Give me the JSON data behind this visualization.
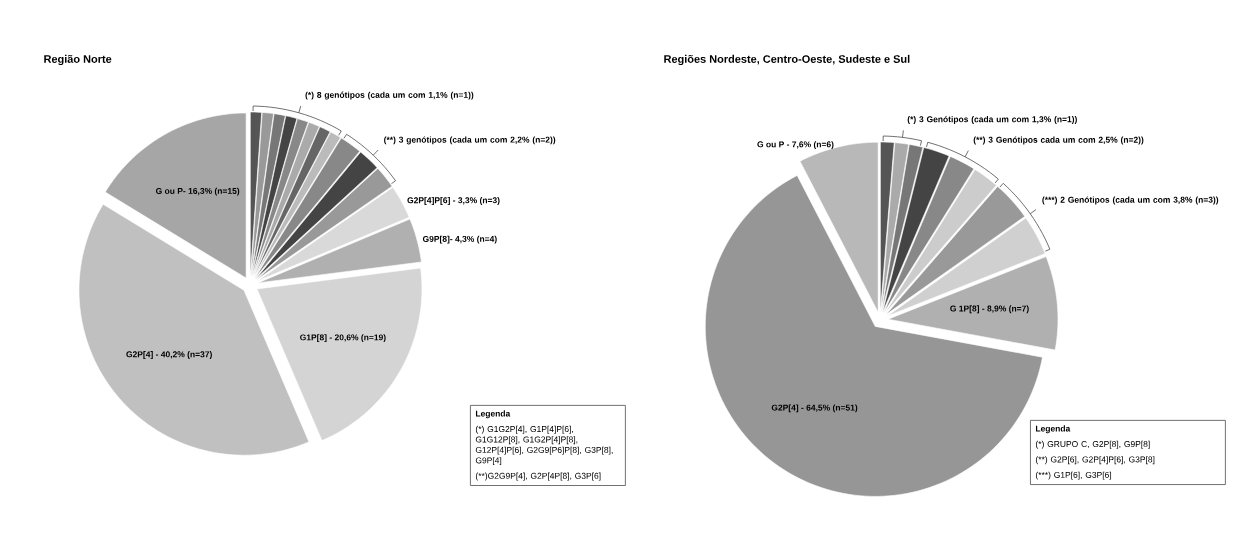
{
  "chart_data": [
    {
      "type": "pie",
      "title": "Região Norte",
      "categories": [
        null,
        null,
        null,
        null,
        null,
        null,
        null,
        null,
        null,
        null,
        null,
        "G2P[4]P[6] - 3,3% (n=3)",
        "G9P[8]- 4,3% (n=4)",
        "G1P[8] - 20,6% (n=19)",
        "G2P[4] - 40,2% (n=37)",
        "G ou P- 16,3% (n=15)"
      ],
      "values": [
        1.1,
        1.1,
        1.1,
        1.1,
        1.1,
        1.1,
        1.1,
        1.1,
        2.2,
        2.2,
        2.2,
        3.3,
        4.3,
        20.6,
        40.2,
        16.3
      ],
      "colors": [
        "#555555",
        "#999999",
        "#777777",
        "#444444",
        "#888888",
        "#aaaaaa",
        "#666666",
        "#bbbbbb",
        "#888888",
        "#444444",
        "#999999",
        "#d9d9d9",
        "#b0b0b0",
        "#d4d4d4",
        "#c0c0c0",
        "#a6a6a6"
      ],
      "annotations": [
        "(*) 8 genótipos (cada um com 1,1% (n=1))",
        "(**) 3 genótipos (cada um com 2,2% (n=2))",
        "Legenda",
        "(*) G1G2P[4], G1P[4]P[6], G1G12P[8], G1G2P[4]P[8], G12P[4]P[6], G2G9[P6]P[8], G3P[8], G9P[4]",
        "(**)G2G9P[4], G2P[4P[8], G3P[6]"
      ]
    },
    {
      "type": "pie",
      "title": "Regiões Nordeste, Centro-Oeste, Sudeste e Sul",
      "categories": [
        null,
        null,
        null,
        null,
        null,
        null,
        null,
        null,
        "G 1P[8] - 8,9% (n=7)",
        "G2P[4] - 64,5% (n=51)",
        "G ou P - 7,6% (n=6)"
      ],
      "values": [
        1.3,
        1.3,
        1.3,
        2.5,
        2.5,
        2.5,
        3.8,
        3.8,
        8.9,
        64.5,
        7.6
      ],
      "colors": [
        "#555555",
        "#aaaaaa",
        "#777777",
        "#444444",
        "#888888",
        "#cccccc",
        "#999999",
        "#d0d0d0",
        "#b0b0b0",
        "#969696",
        "#b8b8b8"
      ],
      "annotations": [
        "(*) 3 Genótipos (cada um com 1,3% (n=1))",
        "(**) 3 Genótipos cada um com 2,5% (n=2))",
        "(***) 2 Genótipos (cada um com 3,8% (n=3))",
        "Legenda",
        "(*) GRUPO C, G2P[8], G9P[8]",
        "(**) G2P[6], G2P[4]P[6], G3P[8]",
        "(***) G1P[6], G3P[6]"
      ]
    }
  ]
}
